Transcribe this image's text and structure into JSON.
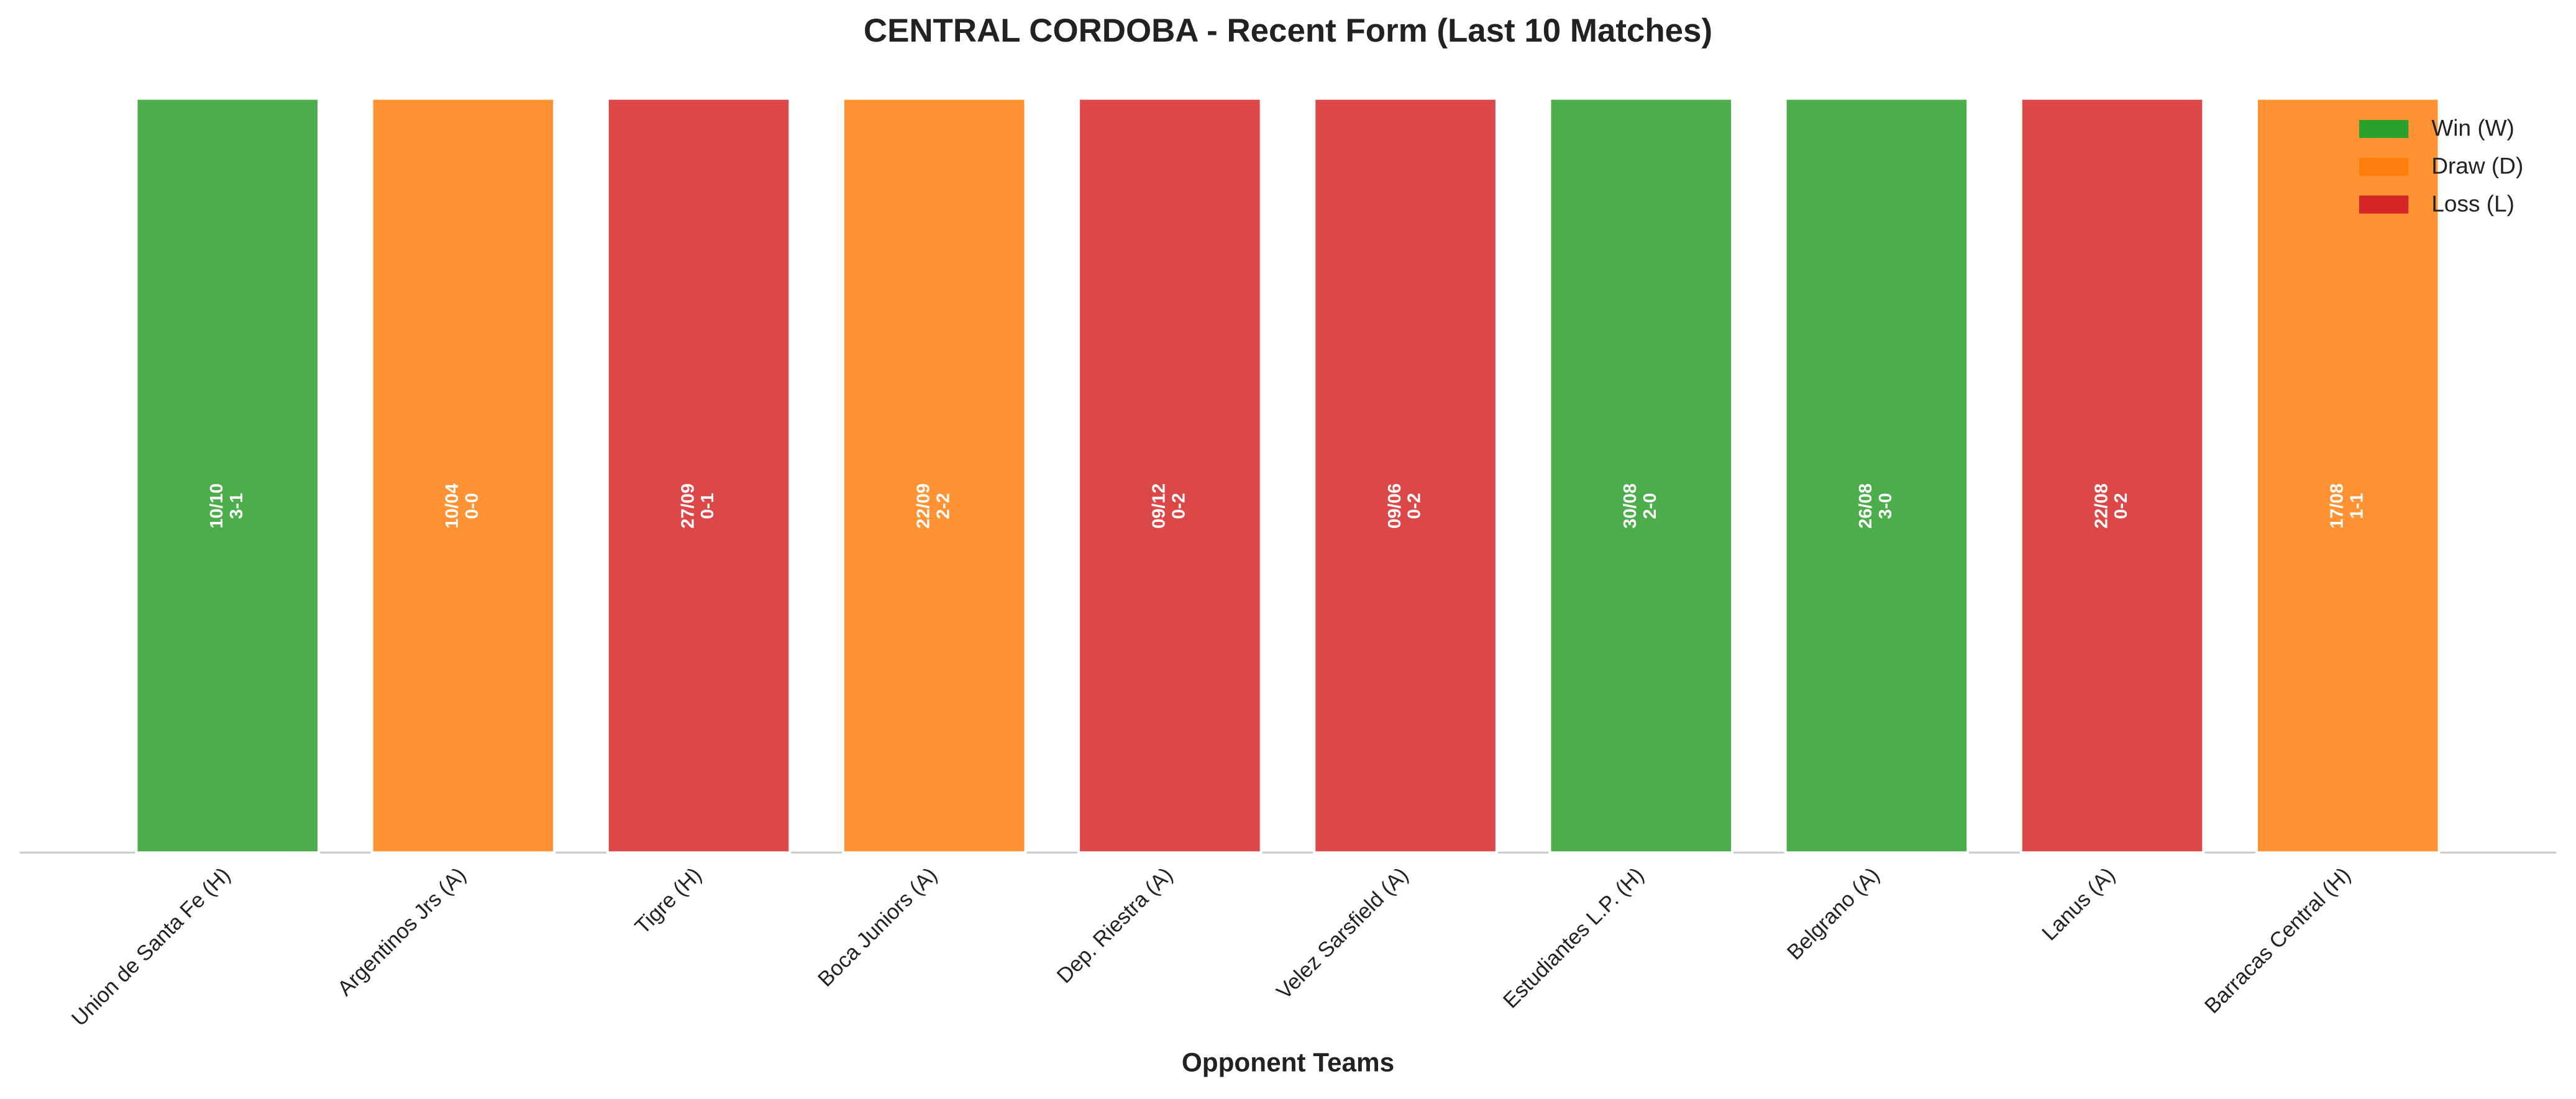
{
  "chart_data": {
    "type": "bar",
    "title": "CENTRAL CORDOBA - Recent Form (Last 10 Matches)",
    "x_label": "Opponent Teams",
    "categories": [
      "Union de Santa Fe (H)",
      "Argentinos Jrs (A)",
      "Tigre (H)",
      "Boca Juniors (A)",
      "Dep. Riestra (A)",
      "Velez Sarsfield (A)",
      "Estudiantes L.P. (H)",
      "Belgrano (A)",
      "Lanus (A)",
      "Barracas Central (H)"
    ],
    "dates": [
      "10/10",
      "10/04",
      "27/09",
      "22/09",
      "09/12",
      "09/06",
      "30/08",
      "26/08",
      "22/08",
      "17/08"
    ],
    "scores": [
      "3-1",
      "0-0",
      "0-1",
      "2-2",
      "0-2",
      "0-2",
      "2-0",
      "3-0",
      "0-2",
      "1-1"
    ],
    "series": [
      {
        "name": "Win (W)",
        "color": "#2ca02c",
        "values": [
          1,
          null,
          null,
          null,
          null,
          null,
          1,
          1,
          null,
          null
        ]
      },
      {
        "name": "Draw (D)",
        "color": "#ff7f0e",
        "values": [
          null,
          1,
          null,
          1,
          null,
          null,
          null,
          null,
          null,
          1
        ]
      },
      {
        "name": "Loss (L)",
        "color": "#d62728",
        "values": [
          null,
          null,
          1,
          null,
          1,
          1,
          null,
          null,
          1,
          null
        ]
      }
    ],
    "ylim": [
      0,
      1.05
    ],
    "legend": "upper right"
  }
}
